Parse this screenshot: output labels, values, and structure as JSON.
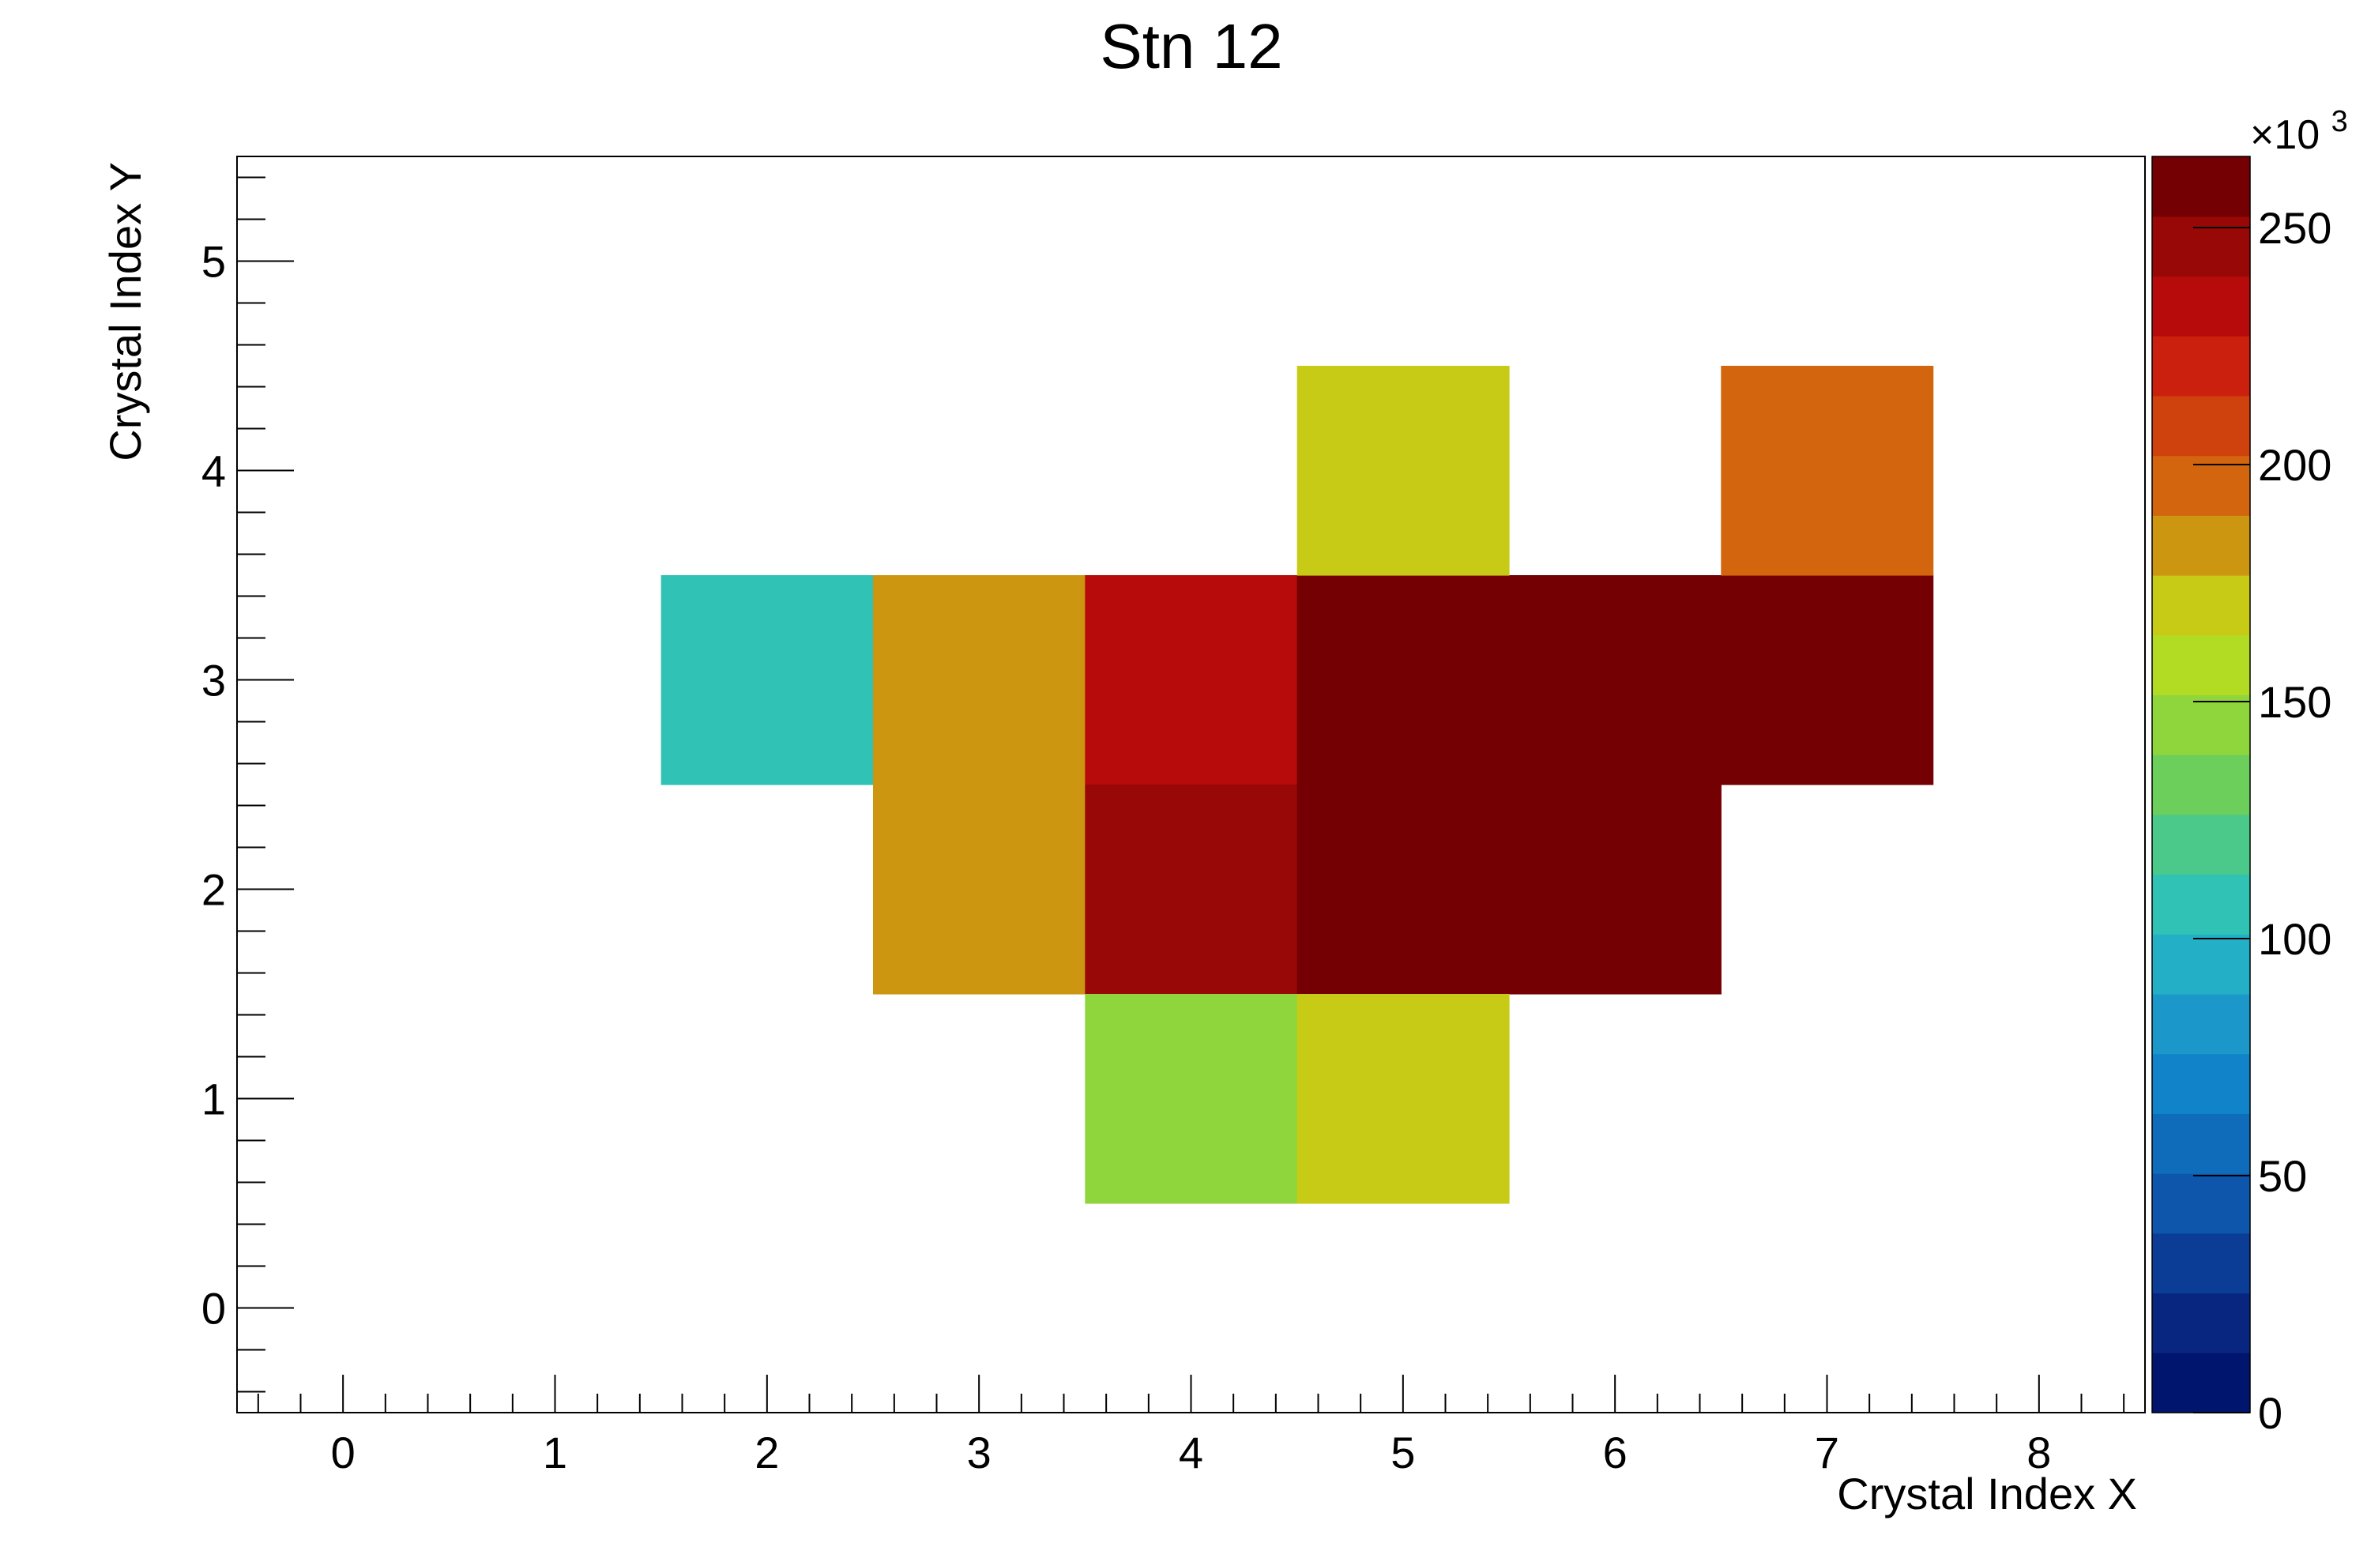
{
  "chart_data": {
    "type": "heatmap",
    "title": "Stn 12",
    "xlabel": "Crystal Index X",
    "ylabel": "Crystal Index Y",
    "xlim": [
      -0.5,
      8.5
    ],
    "ylim": [
      -0.5,
      5.5
    ],
    "x_ticks": [
      "0",
      "1",
      "2",
      "3",
      "4",
      "5",
      "6",
      "7",
      "8"
    ],
    "y_ticks": [
      "0",
      "1",
      "2",
      "3",
      "4",
      "5"
    ],
    "colorbar": {
      "exponent_label": "×10",
      "exponent_power": "3",
      "range": [
        0,
        265
      ],
      "ticks": [
        "0",
        "50",
        "100",
        "150",
        "200",
        "250"
      ],
      "palette": [
        "#00156e",
        "#08257f",
        "#0b3d97",
        "#0d56ab",
        "#0f6cbb",
        "#1183c9",
        "#1b97c9",
        "#23b0c7",
        "#30c2b4",
        "#4bc98a",
        "#6ccf5c",
        "#8fd63c",
        "#b2dc24",
        "#c8cb15",
        "#cc9611",
        "#d2650e",
        "#cf420e",
        "#cc200e",
        "#b60b0a",
        "#970807",
        "#740003"
      ]
    },
    "cells": [
      {
        "x": 2,
        "y": 3,
        "value": 105
      },
      {
        "x": 3,
        "y": 3,
        "value": 182
      },
      {
        "x": 4,
        "y": 3,
        "value": 238
      },
      {
        "x": 5,
        "y": 3,
        "value": 265
      },
      {
        "x": 6,
        "y": 3,
        "value": 265
      },
      {
        "x": 7,
        "y": 3,
        "value": 265
      },
      {
        "x": 3,
        "y": 2,
        "value": 182
      },
      {
        "x": 4,
        "y": 2,
        "value": 250
      },
      {
        "x": 5,
        "y": 2,
        "value": 265
      },
      {
        "x": 6,
        "y": 2,
        "value": 265
      },
      {
        "x": 4,
        "y": 1,
        "value": 145
      },
      {
        "x": 5,
        "y": 1,
        "value": 170
      },
      {
        "x": 5,
        "y": 4,
        "value": 170
      },
      {
        "x": 7,
        "y": 4,
        "value": 195
      }
    ]
  }
}
